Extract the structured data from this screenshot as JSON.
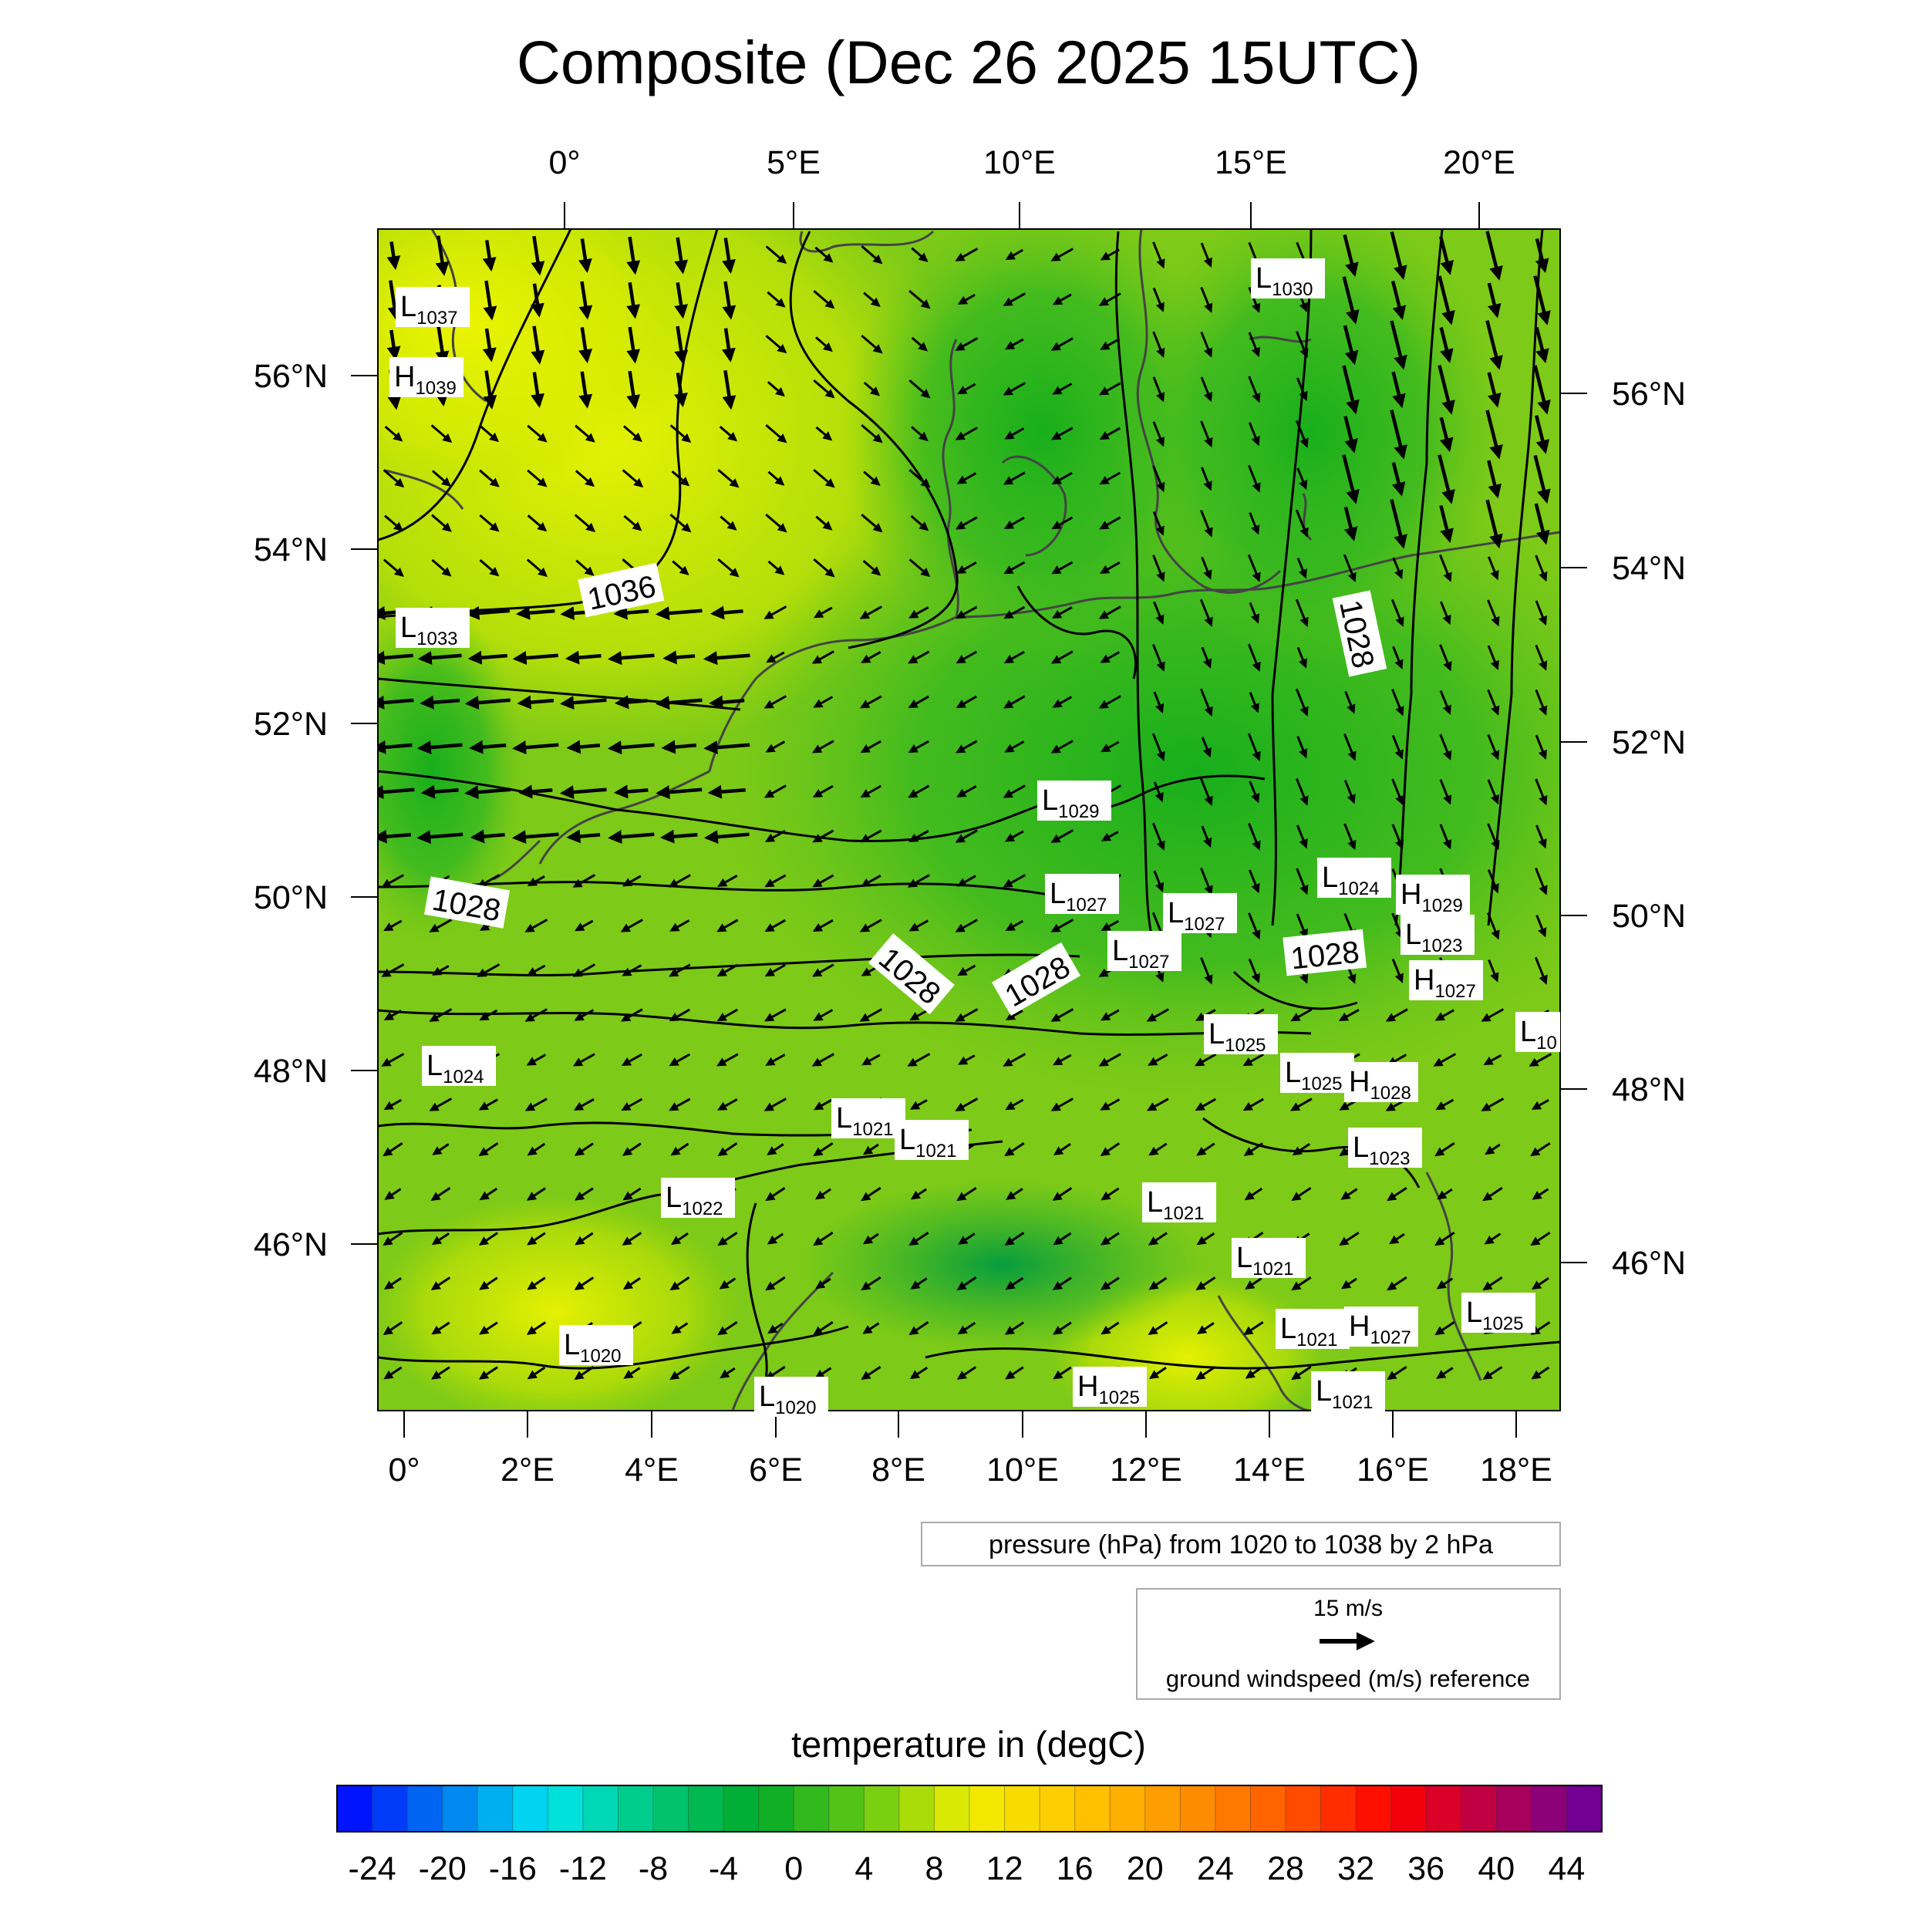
{
  "title": "Composite (Dec 26 2025 15UTC)",
  "axes": {
    "top_lon": [
      "0°",
      "5°E",
      "10°E",
      "15°E",
      "20°E"
    ],
    "bottom_lon": [
      "0°",
      "2°E",
      "4°E",
      "6°E",
      "8°E",
      "10°E",
      "12°E",
      "14°E",
      "16°E",
      "18°E"
    ],
    "left_lat": [
      "56°N",
      "54°N",
      "52°N",
      "50°N",
      "48°N",
      "46°N"
    ],
    "right_lat": [
      "56°N",
      "54°N",
      "52°N",
      "50°N",
      "48°N",
      "46°N"
    ]
  },
  "pressure_centers": [
    {
      "letter": "L",
      "value": "1037"
    },
    {
      "letter": "H",
      "value": "1039"
    },
    {
      "letter": "L",
      "value": "1033"
    },
    {
      "letter": "L",
      "value": "1024"
    },
    {
      "letter": "L",
      "value": "1022"
    },
    {
      "letter": "L",
      "value": "1020"
    },
    {
      "letter": "L",
      "value": "1020"
    },
    {
      "letter": "L",
      "value": "1021"
    },
    {
      "letter": "L",
      "value": "1021"
    },
    {
      "letter": "L",
      "value": "1029"
    },
    {
      "letter": "L",
      "value": "1027"
    },
    {
      "letter": "L",
      "value": "1027"
    },
    {
      "letter": "L",
      "value": "1027"
    },
    {
      "letter": "L",
      "value": "1030"
    },
    {
      "letter": "L",
      "value": "1024"
    },
    {
      "letter": "H",
      "value": "1029"
    },
    {
      "letter": "L",
      "value": "1023"
    },
    {
      "letter": "H",
      "value": "1027"
    },
    {
      "letter": "L",
      "value": "1025"
    },
    {
      "letter": "L",
      "value": "1025"
    },
    {
      "letter": "H",
      "value": "1028"
    },
    {
      "letter": "L",
      "value": "1023"
    },
    {
      "letter": "L",
      "value": "1021"
    },
    {
      "letter": "L",
      "value": "1021"
    },
    {
      "letter": "L",
      "value": "1021"
    },
    {
      "letter": "H",
      "value": "1027"
    },
    {
      "letter": "L",
      "value": "1025"
    },
    {
      "letter": "H",
      "value": "1025"
    },
    {
      "letter": "L",
      "value": "1021"
    },
    {
      "letter": "L",
      "value": "10"
    }
  ],
  "contour_labels": [
    "1036",
    "1028",
    "1028",
    "1028",
    "1028",
    "1028"
  ],
  "pressure_legend": "pressure (hPa) from 1020 to 1038 by 2 hPa",
  "wind_legend": {
    "speed": "15 m/s",
    "caption": "ground windspeed (m/s) reference"
  },
  "colorbar": {
    "title": "temperature in (degC)",
    "min": -26,
    "max": 46,
    "step": 2,
    "labels": [
      "-24",
      "-20",
      "-16",
      "-12",
      "-8",
      "-4",
      "0",
      "4",
      "8",
      "12",
      "16",
      "20",
      "24",
      "28",
      "32",
      "36",
      "40",
      "44"
    ]
  },
  "field_colors": {
    "cold_land": "#1fb51f",
    "mid": "#76c81a",
    "warm_sea": "#c8e400",
    "warmest": "#e8f000"
  }
}
